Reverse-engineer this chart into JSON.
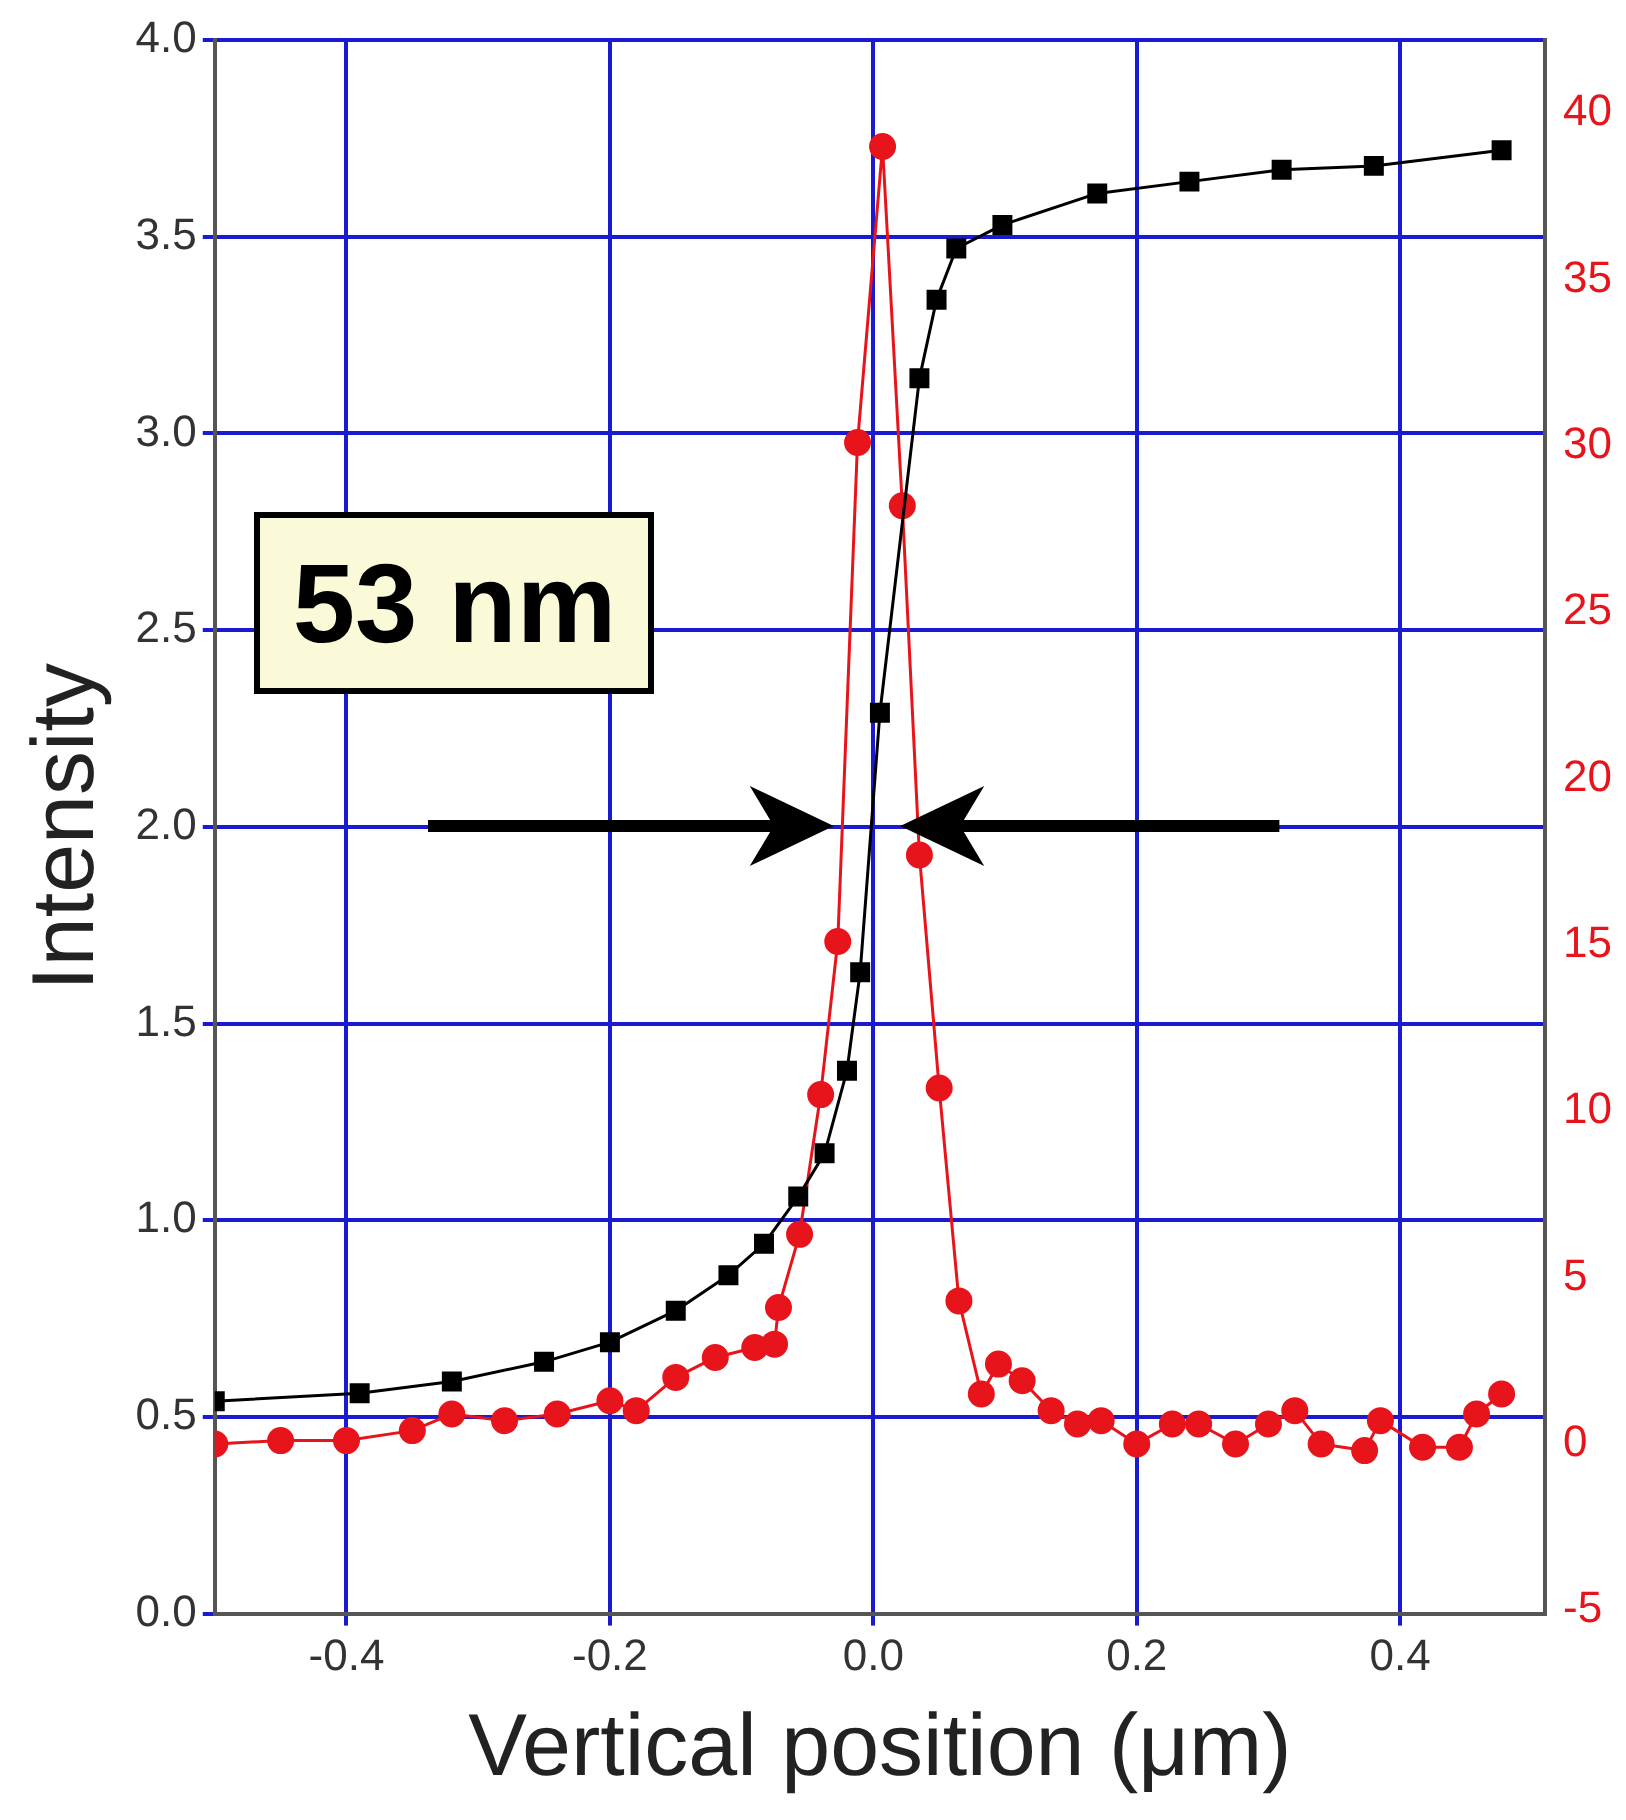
{
  "chart_data": {
    "type": "scatter",
    "xlabel": "Vertical position (μm)",
    "ylabel": "Intensity",
    "xlim": [
      -0.5,
      0.51
    ],
    "xticks": [
      {
        "value": -0.4,
        "label": "-0.4"
      },
      {
        "value": -0.2,
        "label": "-0.2"
      },
      {
        "value": 0,
        "label": "0.0"
      },
      {
        "value": 0.2,
        "label": "0.2"
      },
      {
        "value": 0.4,
        "label": "0.4"
      }
    ],
    "ylim": [
      0,
      4
    ],
    "yticks": [
      {
        "value": 0,
        "label": "0.0"
      },
      {
        "value": 0.5,
        "label": "0.5"
      },
      {
        "value": 1,
        "label": "1.0"
      },
      {
        "value": 1.5,
        "label": "1.5"
      },
      {
        "value": 2,
        "label": "2.0"
      },
      {
        "value": 2.5,
        "label": "2.5"
      },
      {
        "value": 3,
        "label": "3.0"
      },
      {
        "value": 3.5,
        "label": "3.5"
      },
      {
        "value": 4,
        "label": "4.0"
      }
    ],
    "y2lim": [
      -5.1,
      42.2
    ],
    "y2ticks": [
      -5,
      0,
      5,
      10,
      15,
      20,
      25,
      30,
      35,
      40
    ],
    "grid": true,
    "legend": false,
    "annotations": [
      "53 nm"
    ],
    "series": [
      {
        "type": "line",
        "color": "#000000",
        "marker": "square",
        "x": [
          -0.5,
          -0.39,
          -0.32,
          -0.25,
          -0.2,
          -0.15,
          -0.11,
          -0.083,
          -0.057,
          -0.037,
          -0.02,
          -0.01,
          0.005,
          0.035,
          0.048,
          0.063,
          0.098,
          0.17,
          0.24,
          0.31,
          0.38,
          0.477
        ],
        "values": [
          0.54,
          0.56,
          0.59,
          0.64,
          0.69,
          0.77,
          0.86,
          0.94,
          1.06,
          1.17,
          1.38,
          1.63,
          2.29,
          3.14,
          3.34,
          3.47,
          3.53,
          3.61,
          3.64,
          3.67,
          3.68,
          3.72
        ]
      },
      {
        "type": "line",
        "color": "#e8141b",
        "marker": "circle",
        "axis": "y2",
        "x": [
          -0.5,
          -0.45,
          -0.4,
          -0.35,
          -0.32,
          -0.28,
          -0.24,
          -0.2,
          -0.18,
          -0.15,
          -0.12,
          -0.09,
          -0.075,
          -0.072,
          -0.056,
          -0.04,
          -0.027,
          -0.012,
          0.007,
          0.022,
          0.035,
          0.05,
          0.065,
          0.082,
          0.095,
          0.113,
          0.135,
          0.155,
          0.173,
          0.2,
          0.227,
          0.247,
          0.275,
          0.3,
          0.32,
          0.34,
          0.373,
          0.385,
          0.417,
          0.445,
          0.458,
          0.477
        ],
        "values": [
          0,
          0.1,
          0.1,
          0.4,
          0.9,
          0.7,
          0.9,
          1.3,
          1.0,
          2.0,
          2.6,
          2.9,
          3.0,
          4.1,
          6.3,
          10.5,
          15.1,
          30.1,
          39.0,
          28.2,
          17.7,
          10.7,
          4.3,
          1.5,
          2.4,
          1.9,
          1.0,
          0.6,
          0.7,
          0,
          0.6,
          0.6,
          0,
          0.6,
          1.0,
          0,
          -0.2,
          0.7,
          -0.1,
          -0.1,
          0.9,
          1.5
        ]
      }
    ]
  }
}
